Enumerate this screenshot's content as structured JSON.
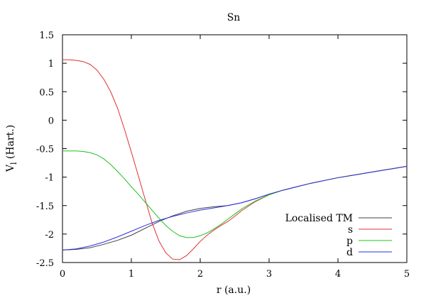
{
  "chart_data": {
    "type": "line",
    "title": "Sn",
    "xlabel": "r (a.u.)",
    "ylabel_main": "V",
    "ylabel_sub": "l",
    "ylabel_rest": " (Hart.)",
    "xlim": [
      0,
      5
    ],
    "ylim": [
      -2.5,
      1.5
    ],
    "xticks": [
      0,
      1,
      2,
      3,
      4,
      5
    ],
    "xtick_labels": [
      "0",
      "1",
      "2",
      "3",
      "4",
      "5"
    ],
    "yticks": [
      1.5,
      1,
      0.5,
      0,
      -0.5,
      -1,
      -1.5,
      -2,
      -2.5
    ],
    "ytick_labels": [
      "1.5",
      "1",
      "0.5",
      "0",
      "-0.5",
      "-1",
      "-1.5",
      "-2",
      "-2.5"
    ],
    "grid": false,
    "legend_position": "bottom-right",
    "series": [
      {
        "name": "Localised TM",
        "color": "#404040",
        "points": [
          [
            0,
            -2.28
          ],
          [
            0.2,
            -2.27
          ],
          [
            0.4,
            -2.24
          ],
          [
            0.6,
            -2.18
          ],
          [
            0.8,
            -2.11
          ],
          [
            1.0,
            -2.02
          ],
          [
            1.2,
            -1.9
          ],
          [
            1.4,
            -1.78
          ],
          [
            1.6,
            -1.68
          ],
          [
            1.8,
            -1.6
          ],
          [
            2.0,
            -1.55
          ],
          [
            2.2,
            -1.52
          ],
          [
            2.4,
            -1.5
          ],
          [
            2.6,
            -1.45
          ],
          [
            2.8,
            -1.38
          ],
          [
            3.0,
            -1.3
          ],
          [
            3.2,
            -1.23
          ],
          [
            3.4,
            -1.17
          ],
          [
            3.6,
            -1.11
          ],
          [
            3.8,
            -1.06
          ],
          [
            4.0,
            -1.01
          ],
          [
            4.2,
            -0.97
          ],
          [
            4.4,
            -0.93
          ],
          [
            4.6,
            -0.89
          ],
          [
            4.8,
            -0.85
          ],
          [
            5.0,
            -0.81
          ]
        ]
      },
      {
        "name": "s",
        "color": "#e03030",
        "points": [
          [
            0,
            1.06
          ],
          [
            0.1,
            1.06
          ],
          [
            0.2,
            1.05
          ],
          [
            0.3,
            1.03
          ],
          [
            0.4,
            0.98
          ],
          [
            0.5,
            0.88
          ],
          [
            0.6,
            0.72
          ],
          [
            0.7,
            0.5
          ],
          [
            0.8,
            0.21
          ],
          [
            0.9,
            -0.16
          ],
          [
            1.0,
            -0.56
          ],
          [
            1.1,
            -0.97
          ],
          [
            1.2,
            -1.39
          ],
          [
            1.3,
            -1.8
          ],
          [
            1.4,
            -2.12
          ],
          [
            1.5,
            -2.33
          ],
          [
            1.6,
            -2.44
          ],
          [
            1.7,
            -2.45
          ],
          [
            1.8,
            -2.38
          ],
          [
            1.9,
            -2.26
          ],
          [
            2.0,
            -2.13
          ],
          [
            2.1,
            -2.02
          ],
          [
            2.2,
            -1.93
          ],
          [
            2.3,
            -1.85
          ],
          [
            2.4,
            -1.78
          ],
          [
            2.5,
            -1.69
          ],
          [
            2.6,
            -1.59
          ],
          [
            2.8,
            -1.43
          ],
          [
            3.0,
            -1.31
          ],
          [
            3.2,
            -1.23
          ],
          [
            3.4,
            -1.17
          ],
          [
            3.6,
            -1.11
          ],
          [
            3.8,
            -1.06
          ],
          [
            4.0,
            -1.01
          ],
          [
            4.2,
            -0.97
          ],
          [
            4.4,
            -0.93
          ],
          [
            4.6,
            -0.89
          ],
          [
            4.8,
            -0.85
          ],
          [
            5.0,
            -0.81
          ]
        ]
      },
      {
        "name": "p",
        "color": "#20c020",
        "points": [
          [
            0,
            -0.54
          ],
          [
            0.1,
            -0.54
          ],
          [
            0.2,
            -0.54
          ],
          [
            0.3,
            -0.55
          ],
          [
            0.4,
            -0.57
          ],
          [
            0.5,
            -0.61
          ],
          [
            0.6,
            -0.68
          ],
          [
            0.7,
            -0.78
          ],
          [
            0.8,
            -0.9
          ],
          [
            0.9,
            -1.03
          ],
          [
            1.0,
            -1.17
          ],
          [
            1.1,
            -1.3
          ],
          [
            1.2,
            -1.44
          ],
          [
            1.3,
            -1.58
          ],
          [
            1.4,
            -1.72
          ],
          [
            1.5,
            -1.85
          ],
          [
            1.6,
            -1.95
          ],
          [
            1.7,
            -2.03
          ],
          [
            1.8,
            -2.06
          ],
          [
            1.9,
            -2.06
          ],
          [
            2.0,
            -2.03
          ],
          [
            2.1,
            -1.98
          ],
          [
            2.2,
            -1.91
          ],
          [
            2.3,
            -1.83
          ],
          [
            2.4,
            -1.74
          ],
          [
            2.5,
            -1.65
          ],
          [
            2.6,
            -1.56
          ],
          [
            2.8,
            -1.42
          ],
          [
            3.0,
            -1.31
          ],
          [
            3.2,
            -1.23
          ],
          [
            3.4,
            -1.17
          ],
          [
            3.6,
            -1.11
          ],
          [
            3.8,
            -1.06
          ],
          [
            4.0,
            -1.01
          ],
          [
            4.2,
            -0.97
          ],
          [
            4.4,
            -0.93
          ],
          [
            4.6,
            -0.89
          ],
          [
            4.8,
            -0.85
          ],
          [
            5.0,
            -0.81
          ]
        ]
      },
      {
        "name": "d",
        "color": "#3030e0",
        "points": [
          [
            0,
            -2.28
          ],
          [
            0.2,
            -2.26
          ],
          [
            0.4,
            -2.21
          ],
          [
            0.6,
            -2.14
          ],
          [
            0.8,
            -2.05
          ],
          [
            1.0,
            -1.95
          ],
          [
            1.2,
            -1.85
          ],
          [
            1.4,
            -1.76
          ],
          [
            1.6,
            -1.69
          ],
          [
            1.8,
            -1.63
          ],
          [
            2.0,
            -1.58
          ],
          [
            2.2,
            -1.54
          ],
          [
            2.4,
            -1.5
          ],
          [
            2.6,
            -1.45
          ],
          [
            2.8,
            -1.38
          ],
          [
            3.0,
            -1.3
          ],
          [
            3.2,
            -1.23
          ],
          [
            3.4,
            -1.17
          ],
          [
            3.6,
            -1.11
          ],
          [
            3.8,
            -1.06
          ],
          [
            4.0,
            -1.01
          ],
          [
            4.2,
            -0.97
          ],
          [
            4.4,
            -0.93
          ],
          [
            4.6,
            -0.89
          ],
          [
            4.8,
            -0.85
          ],
          [
            5.0,
            -0.81
          ]
        ]
      }
    ]
  }
}
